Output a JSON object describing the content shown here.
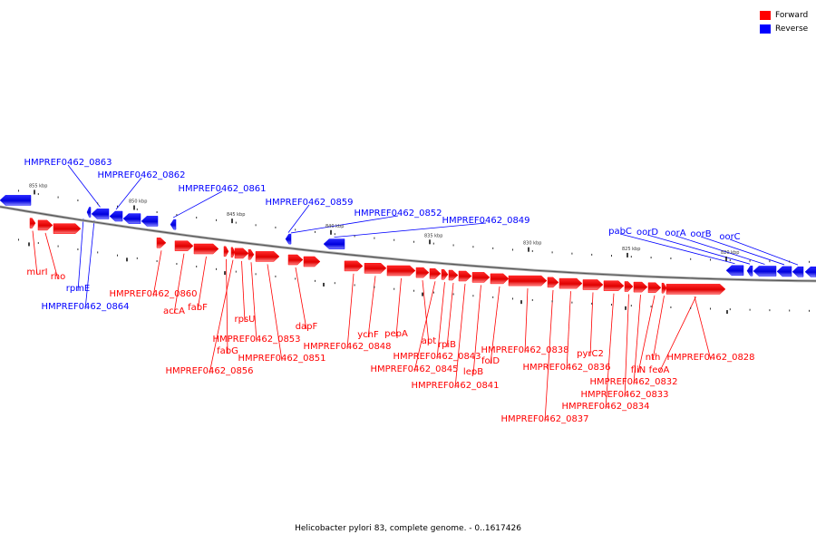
{
  "legend": {
    "forward_label": "Forward",
    "reverse_label": "Reverse",
    "forward_color": "#ff0000",
    "reverse_color": "#0000ff"
  },
  "caption": "Helicobacter pylori 83, complete genome. - 0..1617426",
  "scale_ticks": [
    "855 kbp",
    "850 kbp",
    "845 kbp",
    "840 kbp",
    "835 kbp",
    "830 kbp",
    "825 kbp",
    "820 kbp"
  ],
  "forward_genes": [
    "murI",
    "rho",
    "HMPREF0462_0860",
    "accA",
    "fabF",
    "fabG",
    "HMPREF0462_0856",
    "rpsU",
    "HMPREF0462_0853",
    "HMPREF0462_0851",
    "dapF",
    "HMPREF0462_0848",
    "ychF",
    "pepA",
    "apt",
    "HMPREF0462_0845",
    "HMPREF0462_0843",
    "rpiB",
    "HMPREF0462_0841",
    "lepB",
    "folD",
    "HMPREF0462_0838",
    "HMPREF0462_0837",
    "HMPREF0462_0836",
    "pyrC2",
    "HMPREF0462_0834",
    "HMPREF0462_0833",
    "HMPREF0462_0832",
    "fliN",
    "nth",
    "feoA",
    "HMPREF0462_0828"
  ],
  "reverse_genes": [
    "rpmE",
    "HMPREF0462_0864",
    "HMPREF0462_0863",
    "HMPREF0462_0862",
    "HMPREF0462_0861",
    "HMPREF0462_0859",
    "HMPREF0462_0852",
    "HMPREF0462_0849",
    "pabC",
    "oorD",
    "oorA",
    "oorB",
    "oorC"
  ]
}
